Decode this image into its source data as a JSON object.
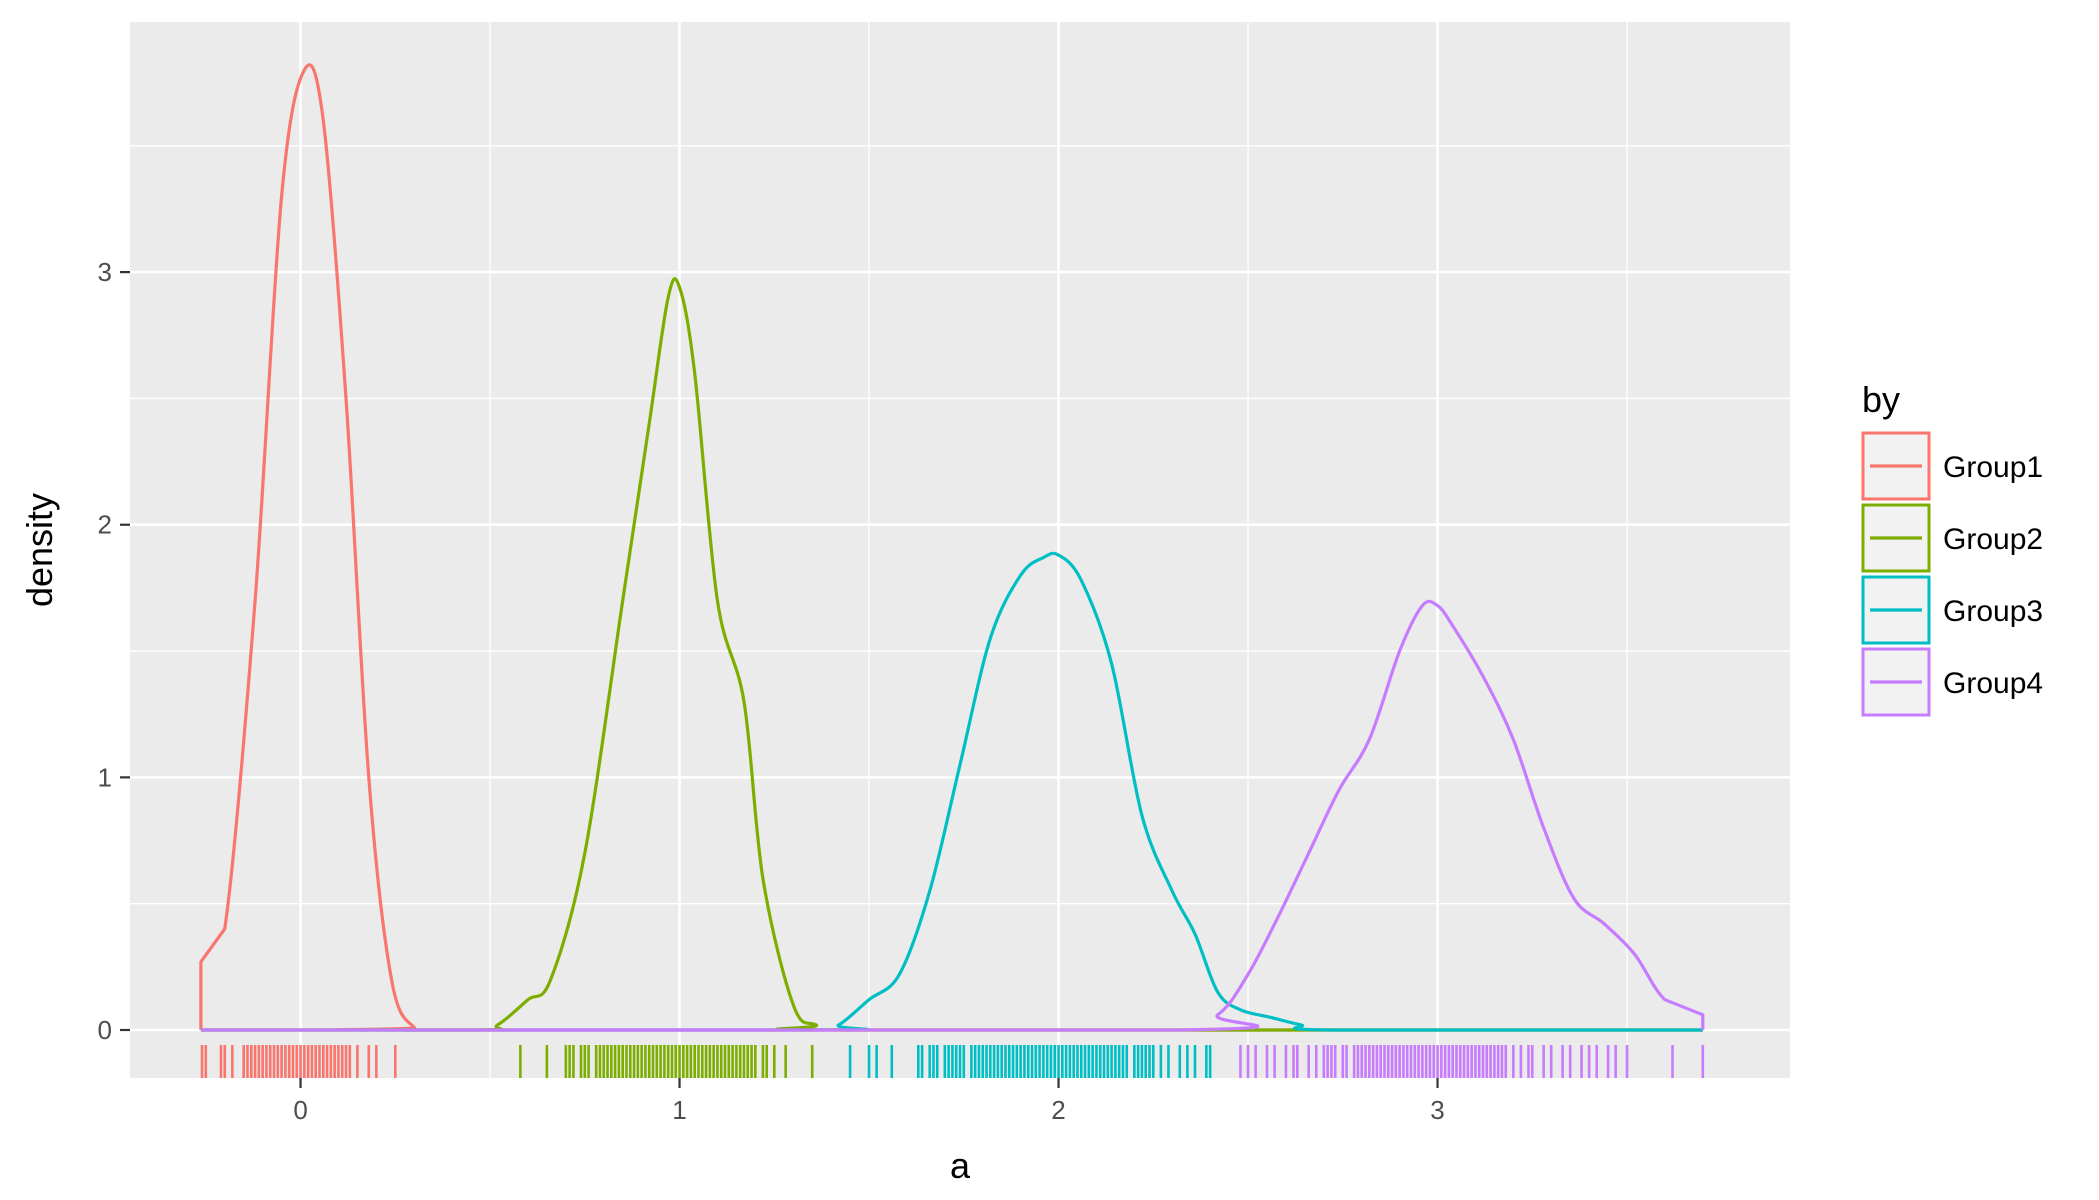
{
  "chart_data": {
    "type": "line",
    "chart_kind": "density with rug",
    "title": "",
    "xlabel": "a",
    "ylabel": "density",
    "xlim": [
      -0.45,
      3.93
    ],
    "ylim": [
      -0.19,
      3.99
    ],
    "x_ticks": [
      0,
      1,
      2,
      3
    ],
    "x_tick_labels": [
      "0",
      "1",
      "2",
      "3"
    ],
    "y_ticks": [
      0,
      1,
      2,
      3
    ],
    "y_tick_labels": [
      "0",
      "1",
      "2",
      "3"
    ],
    "grid": true,
    "panel_background": "#ebebeb",
    "legend": {
      "title": "by",
      "position": "right"
    },
    "series": [
      {
        "name": "Group1",
        "color": "#F8766D",
        "x": [
          -0.263,
          -0.263,
          -0.2,
          -0.12,
          -0.05,
          0.01,
          0.06,
          0.12,
          0.18,
          0.24,
          0.3,
          0.36,
          3.7
        ],
        "values": [
          0,
          0.27,
          0.4,
          1.7,
          3.3,
          3.8,
          3.6,
          2.5,
          1.0,
          0.2,
          0.01,
          0,
          0
        ],
        "rug": [
          -0.26,
          -0.25,
          -0.21,
          -0.2,
          -0.18,
          -0.15,
          -0.14,
          -0.13,
          -0.12,
          -0.11,
          -0.1,
          -0.09,
          -0.08,
          -0.07,
          -0.06,
          -0.05,
          -0.04,
          -0.03,
          -0.02,
          -0.01,
          0.0,
          0.01,
          0.02,
          0.03,
          0.04,
          0.05,
          0.06,
          0.07,
          0.08,
          0.09,
          0.1,
          0.11,
          0.12,
          0.13,
          0.15,
          0.18,
          0.2,
          0.25
        ]
      },
      {
        "name": "Group2",
        "color": "#7CAE00",
        "x": [
          -0.263,
          0.46,
          0.52,
          0.6,
          0.66,
          0.75,
          0.85,
          0.92,
          0.97,
          1.0,
          1.04,
          1.1,
          1.17,
          1.22,
          1.3,
          1.36,
          1.45,
          3.7
        ],
        "values": [
          0,
          0,
          0.02,
          0.12,
          0.2,
          0.7,
          1.7,
          2.4,
          2.9,
          2.94,
          2.6,
          1.7,
          1.3,
          0.6,
          0.1,
          0.02,
          0,
          0
        ],
        "rug": [
          0.58,
          0.65,
          0.7,
          0.71,
          0.72,
          0.74,
          0.75,
          0.76,
          0.78,
          0.79,
          0.8,
          0.81,
          0.82,
          0.83,
          0.84,
          0.85,
          0.86,
          0.87,
          0.88,
          0.89,
          0.9,
          0.91,
          0.92,
          0.93,
          0.94,
          0.95,
          0.96,
          0.97,
          0.98,
          0.99,
          1.0,
          1.01,
          1.02,
          1.03,
          1.04,
          1.05,
          1.06,
          1.07,
          1.08,
          1.09,
          1.1,
          1.11,
          1.12,
          1.13,
          1.14,
          1.15,
          1.16,
          1.17,
          1.18,
          1.19,
          1.2,
          1.22,
          1.23,
          1.25,
          1.28,
          1.35
        ]
      },
      {
        "name": "Group3",
        "color": "#00BFC4",
        "x": [
          -0.263,
          1.36,
          1.42,
          1.5,
          1.58,
          1.66,
          1.74,
          1.82,
          1.9,
          1.96,
          2.0,
          2.06,
          2.14,
          2.22,
          2.3,
          2.36,
          2.42,
          2.48,
          2.56,
          2.64,
          2.72,
          3.7
        ],
        "values": [
          0,
          0,
          0.02,
          0.12,
          0.22,
          0.55,
          1.05,
          1.55,
          1.8,
          1.87,
          1.88,
          1.78,
          1.45,
          0.85,
          0.55,
          0.38,
          0.15,
          0.08,
          0.05,
          0.02,
          0,
          0
        ],
        "rug": [
          1.45,
          1.5,
          1.52,
          1.56,
          1.63,
          1.64,
          1.66,
          1.67,
          1.68,
          1.7,
          1.71,
          1.72,
          1.73,
          1.74,
          1.75,
          1.77,
          1.78,
          1.79,
          1.8,
          1.81,
          1.82,
          1.83,
          1.84,
          1.85,
          1.86,
          1.87,
          1.88,
          1.89,
          1.9,
          1.91,
          1.92,
          1.93,
          1.94,
          1.95,
          1.96,
          1.97,
          1.98,
          1.99,
          2.0,
          2.01,
          2.02,
          2.03,
          2.04,
          2.05,
          2.06,
          2.07,
          2.08,
          2.09,
          2.1,
          2.11,
          2.12,
          2.13,
          2.14,
          2.15,
          2.16,
          2.17,
          2.18,
          2.2,
          2.21,
          2.22,
          2.23,
          2.24,
          2.25,
          2.27,
          2.29,
          2.32,
          2.34,
          2.36,
          2.39,
          2.4
        ]
      },
      {
        "name": "Group4",
        "color": "#C77CFF",
        "x": [
          -0.263,
          2.3,
          2.42,
          2.5,
          2.58,
          2.66,
          2.74,
          2.82,
          2.9,
          2.96,
          3.0,
          3.04,
          3.12,
          3.2,
          3.28,
          3.36,
          3.44,
          3.52,
          3.6,
          3.7,
          3.7
        ],
        "values": [
          0,
          0,
          0.06,
          0.22,
          0.45,
          0.7,
          0.95,
          1.15,
          1.5,
          1.68,
          1.68,
          1.6,
          1.4,
          1.15,
          0.8,
          0.52,
          0.42,
          0.3,
          0.12,
          0.06,
          0
        ],
        "rug": [
          2.48,
          2.5,
          2.52,
          2.55,
          2.57,
          2.6,
          2.62,
          2.63,
          2.66,
          2.68,
          2.7,
          2.71,
          2.72,
          2.73,
          2.75,
          2.76,
          2.78,
          2.79,
          2.8,
          2.81,
          2.82,
          2.83,
          2.84,
          2.85,
          2.86,
          2.87,
          2.88,
          2.89,
          2.9,
          2.91,
          2.92,
          2.93,
          2.94,
          2.95,
          2.96,
          2.97,
          2.98,
          2.99,
          3.0,
          3.01,
          3.02,
          3.03,
          3.04,
          3.05,
          3.06,
          3.07,
          3.08,
          3.09,
          3.1,
          3.11,
          3.12,
          3.13,
          3.14,
          3.15,
          3.16,
          3.17,
          3.18,
          3.2,
          3.22,
          3.24,
          3.25,
          3.28,
          3.3,
          3.33,
          3.35,
          3.38,
          3.4,
          3.42,
          3.45,
          3.47,
          3.5,
          3.62,
          3.7
        ]
      }
    ]
  }
}
